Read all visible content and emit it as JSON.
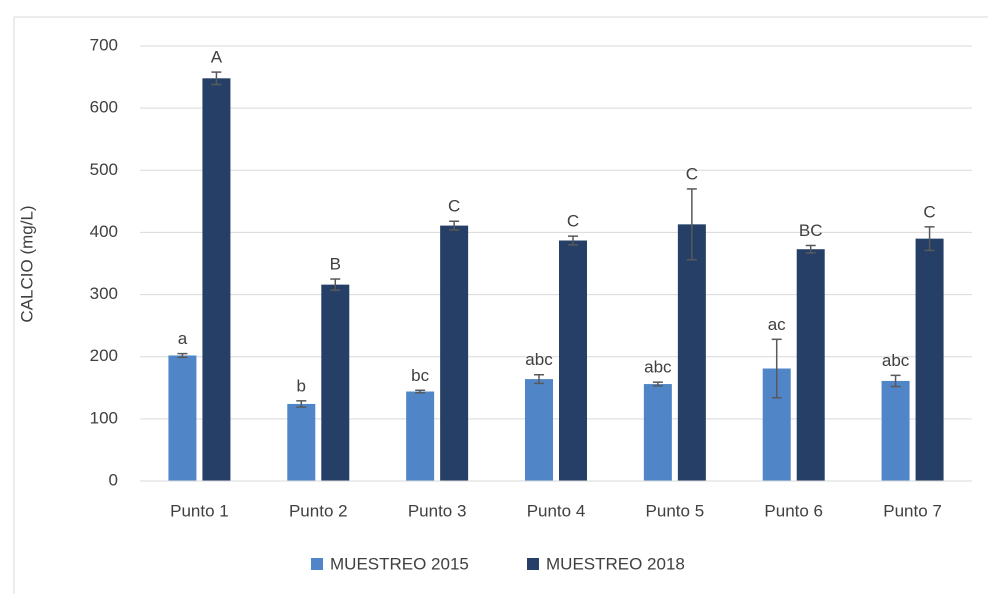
{
  "chart_data": {
    "type": "bar",
    "ylabel": "CALCIO (mg/L)",
    "categories": [
      "Punto 1",
      "Punto 2",
      "Punto 3",
      "Punto 4",
      "Punto 5",
      "Punto 6",
      "Punto 7"
    ],
    "series": [
      {
        "name": "MUESTREO 2015",
        "color": "#5086c8",
        "values": [
          202,
          124,
          144,
          164,
          156,
          181,
          161
        ],
        "errors": [
          3,
          5,
          2,
          7,
          3,
          47,
          9
        ],
        "labels": [
          "a",
          "b",
          "bc",
          "abc",
          "abc",
          "ac",
          "abc"
        ]
      },
      {
        "name": "MUESTREO 2018",
        "color": "#253f66",
        "values": [
          648,
          316,
          411,
          387,
          413,
          373,
          390
        ],
        "errors": [
          10,
          9,
          7,
          7,
          57,
          6,
          19
        ],
        "labels": [
          "A",
          "B",
          "C",
          "C",
          "C",
          "BC",
          "C"
        ]
      }
    ],
    "ylim": [
      0,
      700
    ],
    "yticks": [
      0,
      100,
      200,
      300,
      400,
      500,
      600,
      700
    ],
    "grid": true,
    "legend": "bottom"
  }
}
